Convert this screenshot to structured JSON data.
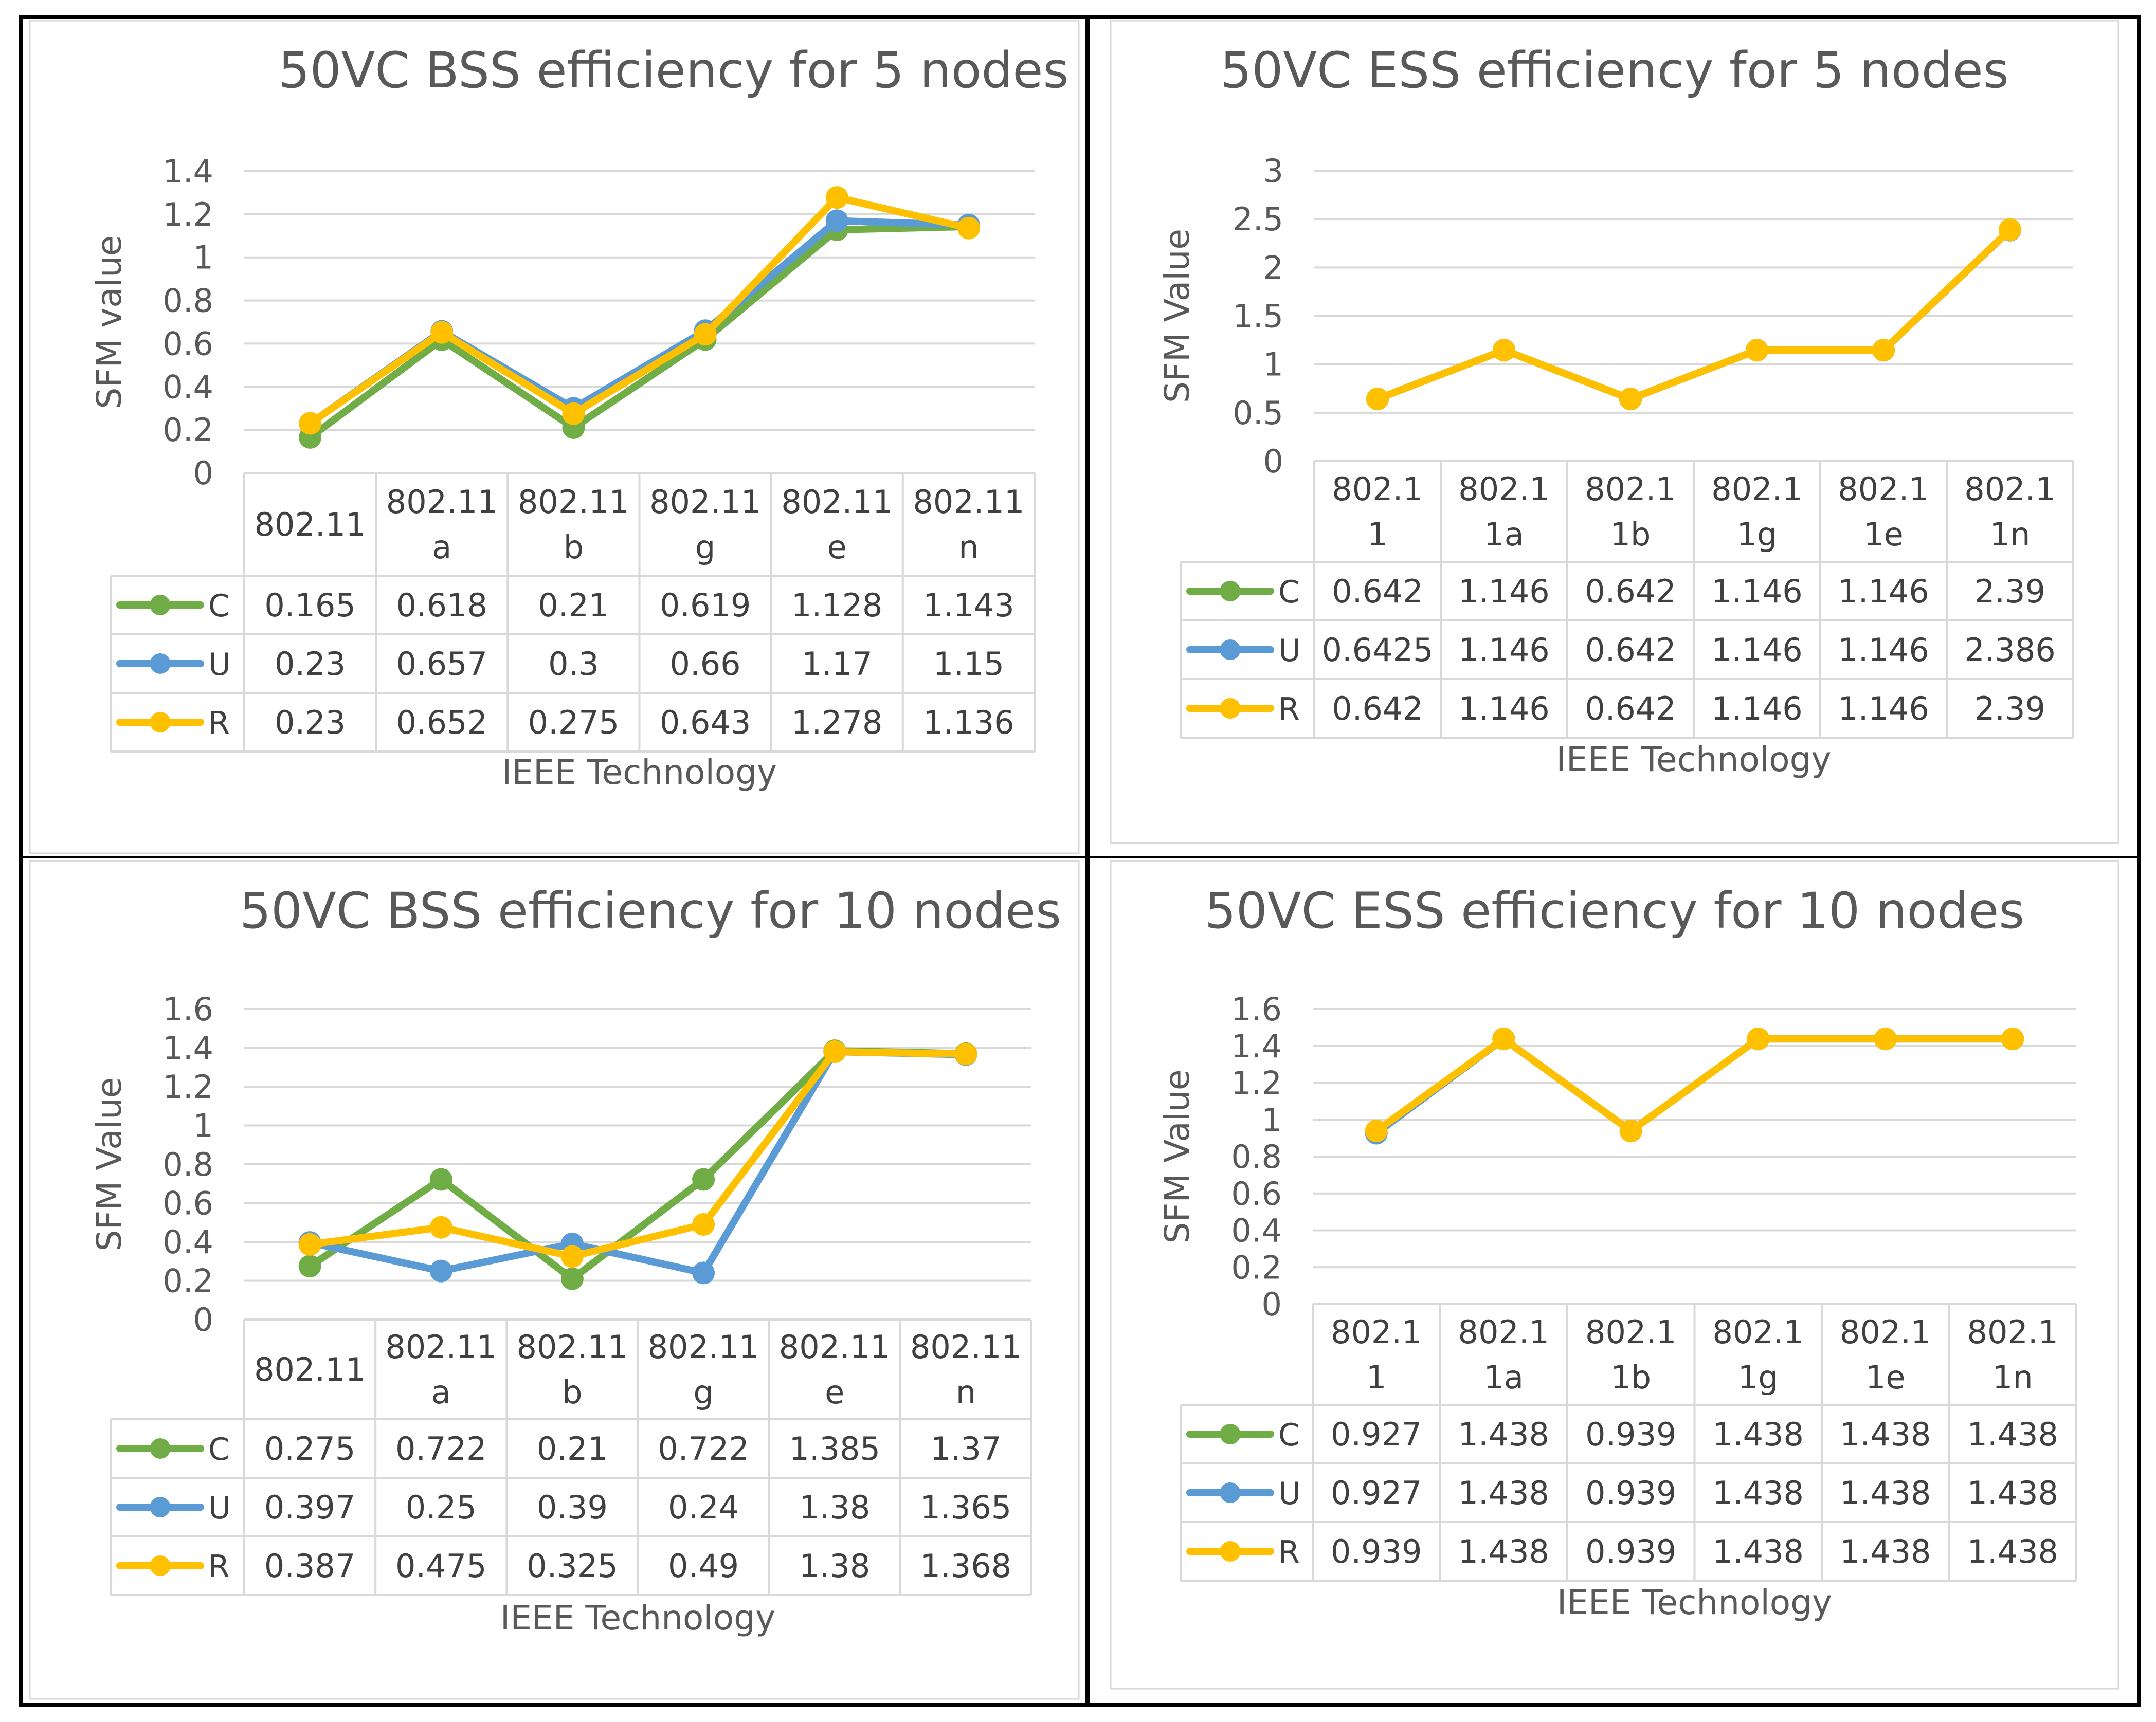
{
  "colors": {
    "C": "#70ad47",
    "U": "#5b9bd5",
    "R": "#ffc000",
    "grid": "#d9d9d9",
    "text": "#595959"
  },
  "chart_data": [
    {
      "type": "line",
      "title": "50VC BSS efficiency for 5 nodes",
      "xlabel": "IEEE Technology",
      "ylabel": "SFM value",
      "ylim": [
        0,
        1.4
      ],
      "yticks": [
        "0",
        "0.2",
        "0.4",
        "0.6",
        "0.8",
        "1",
        "1.2",
        "1.4"
      ],
      "categories": [
        [
          "802.11"
        ],
        [
          "802.11",
          "a"
        ],
        [
          "802.11",
          "b"
        ],
        [
          "802.11",
          "g"
        ],
        [
          "802.11",
          "e"
        ],
        [
          "802.11",
          "n"
        ]
      ],
      "series": [
        {
          "name": "C",
          "values": [
            0.165,
            0.618,
            0.21,
            0.619,
            1.128,
            1.143
          ],
          "labels": [
            "0.165",
            "0.618",
            "0.21",
            "0.619",
            "1.128",
            "1.143"
          ]
        },
        {
          "name": "U",
          "values": [
            0.23,
            0.657,
            0.3,
            0.66,
            1.17,
            1.15
          ],
          "labels": [
            "0.23",
            "0.657",
            "0.3",
            "0.66",
            "1.17",
            "1.15"
          ]
        },
        {
          "name": "R",
          "values": [
            0.23,
            0.652,
            0.275,
            0.643,
            1.278,
            1.136
          ],
          "labels": [
            "0.23",
            "0.652",
            "0.275",
            "0.643",
            "1.278",
            "1.136"
          ]
        }
      ],
      "grid": true,
      "legend": "data-table"
    },
    {
      "type": "line",
      "title": "50VC ESS efficiency for 5 nodes",
      "xlabel": "IEEE Technology",
      "ylabel": "SFM Value",
      "ylim": [
        0,
        3
      ],
      "yticks": [
        "0",
        "0.5",
        "1",
        "1.5",
        "2",
        "2.5",
        "3"
      ],
      "categories": [
        [
          "802.1",
          "1"
        ],
        [
          "802.1",
          "1a"
        ],
        [
          "802.1",
          "1b"
        ],
        [
          "802.1",
          "1g"
        ],
        [
          "802.1",
          "1e"
        ],
        [
          "802.1",
          "1n"
        ]
      ],
      "series": [
        {
          "name": "C",
          "values": [
            0.642,
            1.146,
            0.642,
            1.146,
            1.146,
            2.39
          ],
          "labels": [
            "0.642",
            "1.146",
            "0.642",
            "1.146",
            "1.146",
            "2.39"
          ]
        },
        {
          "name": "U",
          "values": [
            0.6425,
            1.146,
            0.642,
            1.146,
            1.146,
            2.386
          ],
          "labels": [
            "0.6425",
            "1.146",
            "0.642",
            "1.146",
            "1.146",
            "2.386"
          ]
        },
        {
          "name": "R",
          "values": [
            0.642,
            1.146,
            0.642,
            1.146,
            1.146,
            2.39
          ],
          "labels": [
            "0.642",
            "1.146",
            "0.642",
            "1.146",
            "1.146",
            "2.39"
          ]
        }
      ],
      "grid": true,
      "legend": "data-table"
    },
    {
      "type": "line",
      "title": "50VC BSS efficiency for 10 nodes",
      "xlabel": "IEEE Technology",
      "ylabel": "SFM Value",
      "ylim": [
        0,
        1.6
      ],
      "yticks": [
        "0",
        "0.2",
        "0.4",
        "0.6",
        "0.8",
        "1",
        "1.2",
        "1.4",
        "1.6"
      ],
      "categories": [
        [
          "802.11"
        ],
        [
          "802.11",
          "a"
        ],
        [
          "802.11",
          "b"
        ],
        [
          "802.11",
          "g"
        ],
        [
          "802.11",
          "e"
        ],
        [
          "802.11",
          "n"
        ]
      ],
      "series": [
        {
          "name": "C",
          "values": [
            0.275,
            0.722,
            0.21,
            0.722,
            1.385,
            1.37
          ],
          "labels": [
            "0.275",
            "0.722",
            "0.21",
            "0.722",
            "1.385",
            "1.37"
          ]
        },
        {
          "name": "U",
          "values": [
            0.397,
            0.25,
            0.39,
            0.24,
            1.38,
            1.365
          ],
          "labels": [
            "0.397",
            "0.25",
            "0.39",
            "0.24",
            "1.38",
            "1.365"
          ]
        },
        {
          "name": "R",
          "values": [
            0.387,
            0.475,
            0.325,
            0.49,
            1.38,
            1.368
          ],
          "labels": [
            "0.387",
            "0.475",
            "0.325",
            "0.49",
            "1.38",
            "1.368"
          ]
        }
      ],
      "grid": true,
      "legend": "data-table"
    },
    {
      "type": "line",
      "title": "50VC ESS efficiency for 10 nodes",
      "xlabel": "IEEE Technology",
      "ylabel": "SFM Value",
      "ylim": [
        0,
        1.6
      ],
      "yticks": [
        "0",
        "0.2",
        "0.4",
        "0.6",
        "0.8",
        "1",
        "1.2",
        "1.4",
        "1.6"
      ],
      "categories": [
        [
          "802.1",
          "1"
        ],
        [
          "802.1",
          "1a"
        ],
        [
          "802.1",
          "1b"
        ],
        [
          "802.1",
          "1g"
        ],
        [
          "802.1",
          "1e"
        ],
        [
          "802.1",
          "1n"
        ]
      ],
      "series": [
        {
          "name": "C",
          "values": [
            0.927,
            1.438,
            0.939,
            1.438,
            1.438,
            1.438
          ],
          "labels": [
            "0.927",
            "1.438",
            "0.939",
            "1.438",
            "1.438",
            "1.438"
          ]
        },
        {
          "name": "U",
          "values": [
            0.927,
            1.438,
            0.939,
            1.438,
            1.438,
            1.438
          ],
          "labels": [
            "0.927",
            "1.438",
            "0.939",
            "1.438",
            "1.438",
            "1.438"
          ]
        },
        {
          "name": "R",
          "values": [
            0.939,
            1.438,
            0.939,
            1.438,
            1.438,
            1.438
          ],
          "labels": [
            "0.939",
            "1.438",
            "0.939",
            "1.438",
            "1.438",
            "1.438"
          ]
        }
      ],
      "grid": true,
      "legend": "data-table"
    }
  ]
}
